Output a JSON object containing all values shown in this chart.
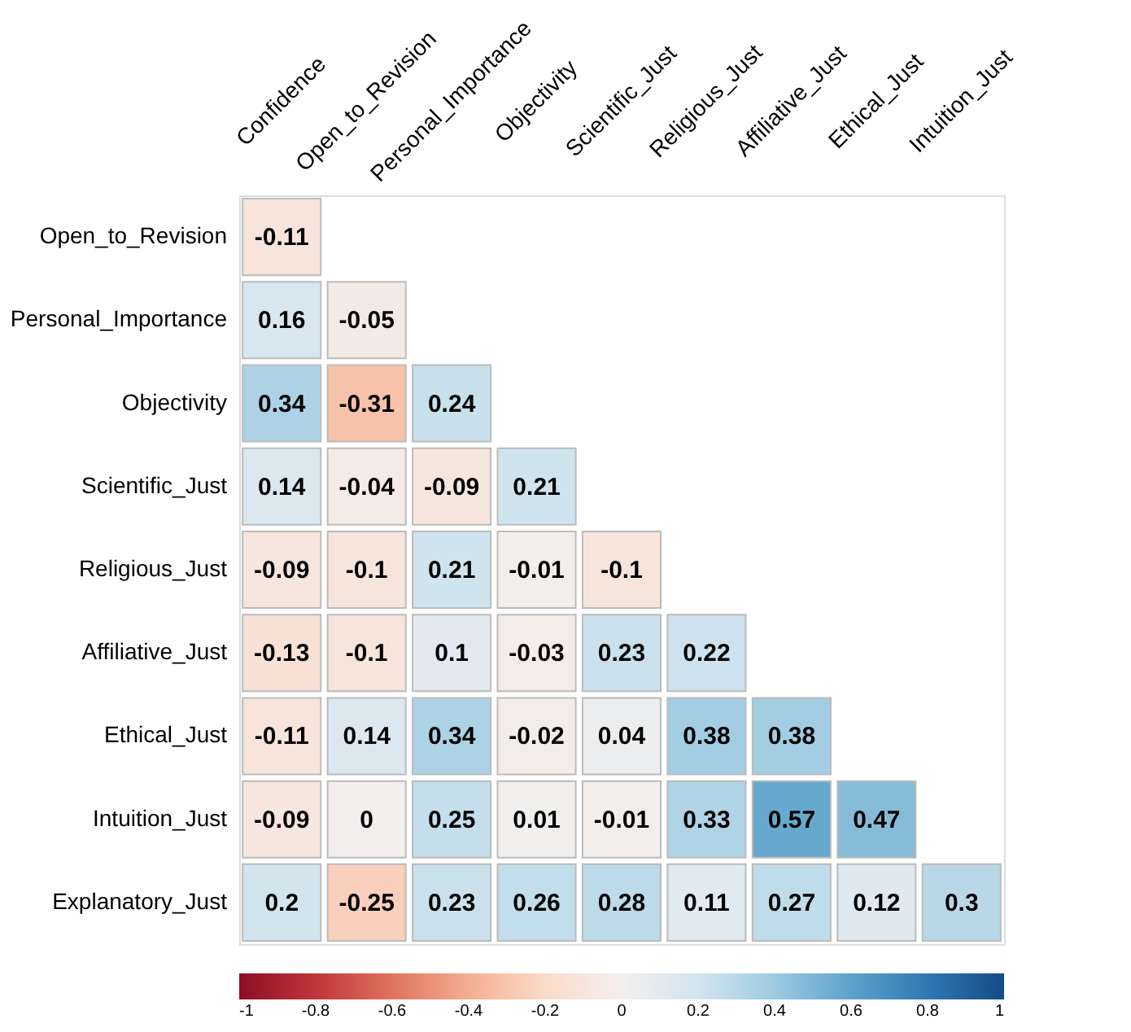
{
  "chart_data": {
    "type": "heatmap",
    "categories": [
      "Confidence",
      "Open_to_Revision",
      "Personal_Importance",
      "Objectivity",
      "Scientific_Just",
      "Religious_Just",
      "Affiliative_Just",
      "Ethical_Just",
      "Intuition_Just"
    ],
    "y_categories": [
      "Open_to_Revision",
      "Personal_Importance",
      "Objectivity",
      "Scientific_Just",
      "Religious_Just",
      "Affiliative_Just",
      "Ethical_Just",
      "Intuition_Just",
      "Explanatory_Just"
    ],
    "cells": [
      [
        -0.11,
        null,
        null,
        null,
        null,
        null,
        null,
        null,
        null
      ],
      [
        0.16,
        -0.05,
        null,
        null,
        null,
        null,
        null,
        null,
        null
      ],
      [
        0.34,
        -0.31,
        0.24,
        null,
        null,
        null,
        null,
        null,
        null
      ],
      [
        0.14,
        -0.04,
        -0.09,
        0.21,
        null,
        null,
        null,
        null,
        null
      ],
      [
        -0.09,
        -0.1,
        0.21,
        -0.01,
        -0.1,
        null,
        null,
        null,
        null
      ],
      [
        -0.13,
        -0.1,
        0.1,
        -0.03,
        0.23,
        0.22,
        null,
        null,
        null
      ],
      [
        -0.11,
        0.14,
        0.34,
        -0.02,
        0.04,
        0.38,
        0.38,
        null,
        null
      ],
      [
        -0.09,
        0,
        0.25,
        0.01,
        -0.01,
        0.33,
        0.57,
        0.47,
        null
      ],
      [
        0.2,
        -0.25,
        0.23,
        0.26,
        0.28,
        0.11,
        0.27,
        0.12,
        0.3
      ]
    ],
    "clim": [
      -1,
      1
    ],
    "cticks": [
      -1,
      -0.8,
      -0.6,
      -0.4,
      -0.2,
      0,
      0.2,
      0.4,
      0.6,
      0.8,
      1
    ],
    "data_labels": true,
    "grid": false
  }
}
